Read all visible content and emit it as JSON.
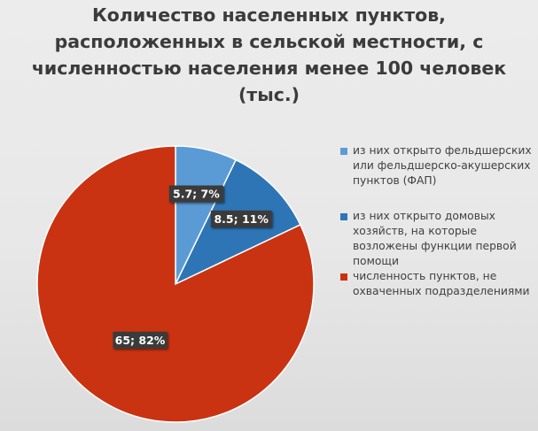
{
  "chart_data": {
    "type": "pie",
    "title_lines": [
      "Количество населенных пунктов,",
      "расположенных в сельской местности, с",
      "численностью населения менее 100 человек",
      "(тыс.)"
    ],
    "series": [
      {
        "name": "из них открыто фельдшерских или фельдшерско-акушерских пунктов (ФАП)",
        "value": 5.7,
        "percent": 7,
        "label": "5.7; 7%",
        "color": "#5b9bd5"
      },
      {
        "name": "из них открыто домовых хозяйств, на которые возложены функции первой помощи",
        "value": 8.5,
        "percent": 11,
        "label": "8.5; 11%",
        "color": "#2e75b6"
      },
      {
        "name": "численность пунктов, не охваченных подразделениями",
        "value": 65,
        "percent": 82,
        "label": "65; 82%",
        "color": "#c93312"
      }
    ],
    "legend_position": "right"
  }
}
